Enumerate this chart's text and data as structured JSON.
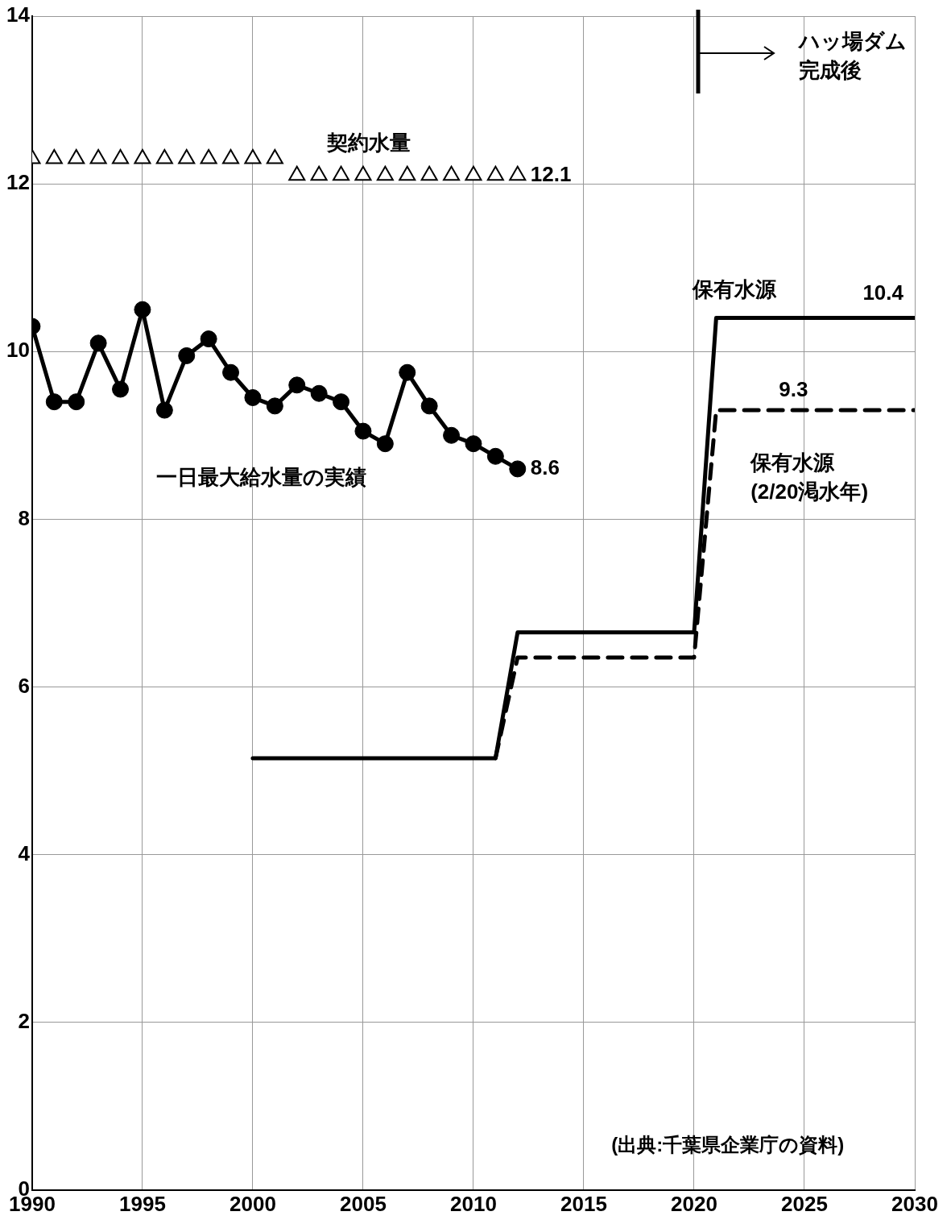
{
  "chart_data": {
    "type": "line",
    "xlim": [
      1990,
      2030
    ],
    "ylim": [
      0,
      14
    ],
    "xticks": [
      1990,
      1995,
      2000,
      2005,
      2010,
      2015,
      2020,
      2025,
      2030
    ],
    "yticks": [
      0,
      2,
      4,
      6,
      8,
      10,
      12,
      14
    ],
    "grid": true,
    "legend": false,
    "series": [
      {
        "type": "scatter",
        "name": "契約水量",
        "marker": "triangle",
        "color": "#000000",
        "x": [
          1990,
          1991,
          1992,
          1993,
          1994,
          1995,
          1996,
          1997,
          1998,
          1999,
          2000,
          2001,
          2002,
          2003,
          2004,
          2005,
          2006,
          2007,
          2008,
          2009,
          2010,
          2011,
          2012
        ],
        "values": [
          12.3,
          12.3,
          12.3,
          12.3,
          12.3,
          12.3,
          12.3,
          12.3,
          12.3,
          12.3,
          12.3,
          12.3,
          12.1,
          12.1,
          12.1,
          12.1,
          12.1,
          12.1,
          12.1,
          12.1,
          12.1,
          12.1,
          12.1
        ],
        "value_labels": [
          null,
          null,
          null,
          null,
          null,
          null,
          null,
          null,
          null,
          null,
          null,
          null,
          null,
          null,
          null,
          null,
          null,
          null,
          null,
          null,
          null,
          null,
          "12.1"
        ]
      },
      {
        "name": "一日最大給水量の実績",
        "marker": "circle",
        "line_style": "solid",
        "color": "#000000",
        "x": [
          1990,
          1991,
          1992,
          1993,
          1994,
          1995,
          1996,
          1997,
          1998,
          1999,
          2000,
          2001,
          2002,
          2003,
          2004,
          2005,
          2006,
          2007,
          2008,
          2009,
          2010,
          2011,
          2012
        ],
        "values": [
          10.3,
          9.4,
          9.4,
          10.1,
          9.55,
          10.5,
          9.3,
          9.95,
          10.15,
          9.75,
          9.45,
          9.35,
          9.6,
          9.5,
          9.4,
          9.05,
          8.9,
          9.75,
          9.35,
          9.0,
          8.9,
          8.75,
          8.6
        ],
        "value_labels": [
          null,
          null,
          null,
          null,
          null,
          null,
          null,
          null,
          null,
          null,
          null,
          null,
          null,
          null,
          null,
          null,
          null,
          null,
          null,
          null,
          null,
          null,
          "8.6"
        ]
      },
      {
        "name": "保有水源",
        "marker": "none",
        "line_style": "solid",
        "color": "#000000",
        "x": [
          2000,
          2011,
          2012,
          2020,
          2021,
          2030
        ],
        "values": [
          5.15,
          5.15,
          6.65,
          6.65,
          10.4,
          10.4
        ],
        "value_labels": [
          null,
          null,
          null,
          null,
          null,
          "10.4"
        ]
      },
      {
        "name": "保有水源(2/20渇水年)",
        "marker": "none",
        "line_style": "dashed",
        "color": "#000000",
        "x": [
          2011,
          2012,
          2020,
          2021,
          2024.5,
          2030
        ],
        "values": [
          5.15,
          6.35,
          6.35,
          9.3,
          9.3,
          9.3
        ],
        "value_labels": [
          null,
          null,
          null,
          null,
          "9.3",
          null
        ]
      }
    ],
    "annotations": [
      "ハッ場ダム完成後",
      "(出典:千葉県企業庁の資料)"
    ]
  }
}
